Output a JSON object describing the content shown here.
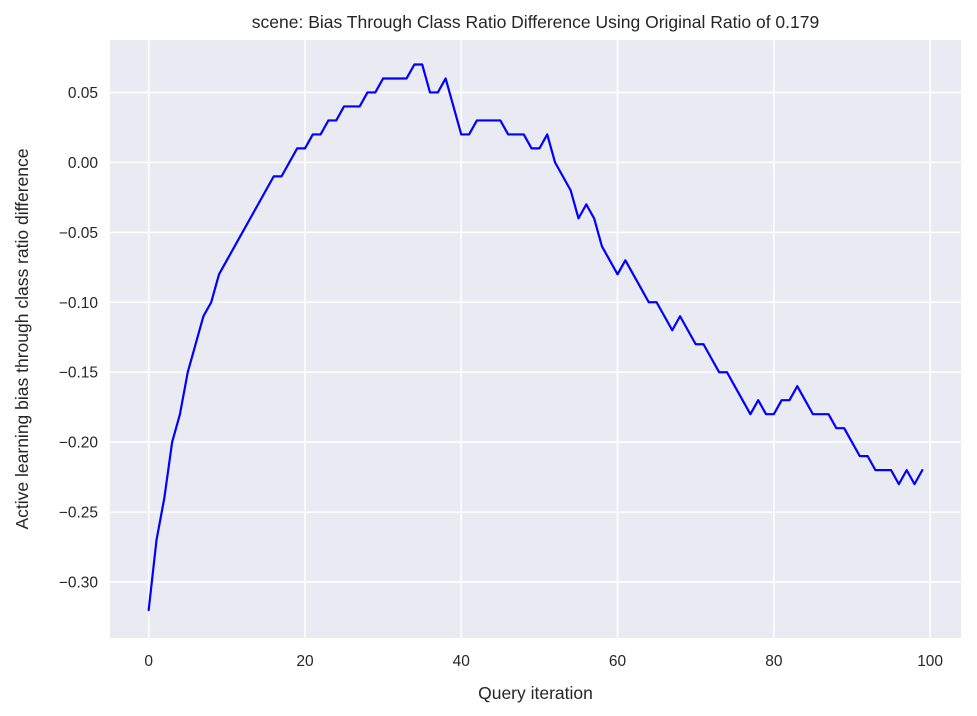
{
  "chart_data": {
    "type": "line",
    "title": "scene: Bias Through Class Ratio Difference Using Original Ratio of 0.179",
    "xlabel": "Query iteration",
    "ylabel": "Active learning bias through class ratio difference",
    "xlim": [
      -4.95,
      103.95
    ],
    "ylim": [
      -0.34,
      0.0875
    ],
    "x_ticks": [
      0,
      20,
      40,
      60,
      80,
      100
    ],
    "y_ticks": [
      -0.3,
      -0.25,
      -0.2,
      -0.15,
      -0.1,
      -0.05,
      0.0,
      0.05
    ],
    "x_tick_labels": [
      "0",
      "20",
      "40",
      "60",
      "80",
      "100"
    ],
    "y_tick_labels": [
      "−0.30",
      "−0.25",
      "−0.20",
      "−0.15",
      "−0.10",
      "−0.05",
      "0.00",
      "0.05"
    ],
    "grid": true,
    "colors": {
      "background": "#EAEAF2",
      "grid": "#FFFFFF",
      "line": "#0000FF"
    },
    "series": [
      {
        "x": [
          0,
          1,
          2,
          3,
          4,
          5,
          6,
          7,
          8,
          9,
          10,
          11,
          12,
          13,
          14,
          15,
          16,
          17,
          18,
          19,
          20,
          21,
          22,
          23,
          24,
          25,
          26,
          27,
          28,
          29,
          30,
          31,
          32,
          33,
          34,
          35,
          36,
          37,
          38,
          39,
          40,
          41,
          42,
          43,
          44,
          45,
          46,
          47,
          48,
          49,
          50,
          51,
          52,
          53,
          54,
          55,
          56,
          57,
          58,
          59,
          60,
          61,
          62,
          63,
          64,
          65,
          66,
          67,
          68,
          69,
          70,
          71,
          72,
          73,
          74,
          75,
          76,
          77,
          78,
          79,
          80,
          81,
          82,
          83,
          84,
          85,
          86,
          87,
          88,
          89,
          90,
          91,
          92,
          93,
          94,
          95,
          96,
          97,
          98,
          99
        ],
        "values": [
          -0.32,
          -0.27,
          -0.24,
          -0.2,
          -0.18,
          -0.15,
          -0.13,
          -0.11,
          -0.1,
          -0.08,
          -0.07,
          -0.06,
          -0.05,
          -0.04,
          -0.03,
          -0.02,
          -0.01,
          -0.01,
          0.0,
          0.01,
          0.01,
          0.02,
          0.02,
          0.03,
          0.03,
          0.04,
          0.04,
          0.04,
          0.05,
          0.05,
          0.06,
          0.06,
          0.06,
          0.06,
          0.07,
          0.07,
          0.05,
          0.05,
          0.06,
          0.04,
          0.02,
          0.02,
          0.03,
          0.03,
          0.03,
          0.03,
          0.02,
          0.02,
          0.02,
          0.01,
          0.01,
          0.02,
          0.0,
          -0.01,
          -0.02,
          -0.04,
          -0.03,
          -0.04,
          -0.06,
          -0.07,
          -0.08,
          -0.07,
          -0.08,
          -0.09,
          -0.1,
          -0.1,
          -0.11,
          -0.12,
          -0.11,
          -0.12,
          -0.13,
          -0.13,
          -0.14,
          -0.15,
          -0.15,
          -0.16,
          -0.17,
          -0.18,
          -0.17,
          -0.18,
          -0.18,
          -0.17,
          -0.17,
          -0.16,
          -0.17,
          -0.18,
          -0.18,
          -0.18,
          -0.19,
          -0.19,
          -0.2,
          -0.21,
          -0.21,
          -0.22,
          -0.22,
          -0.22,
          -0.23,
          -0.22,
          -0.23,
          -0.22
        ]
      }
    ]
  }
}
